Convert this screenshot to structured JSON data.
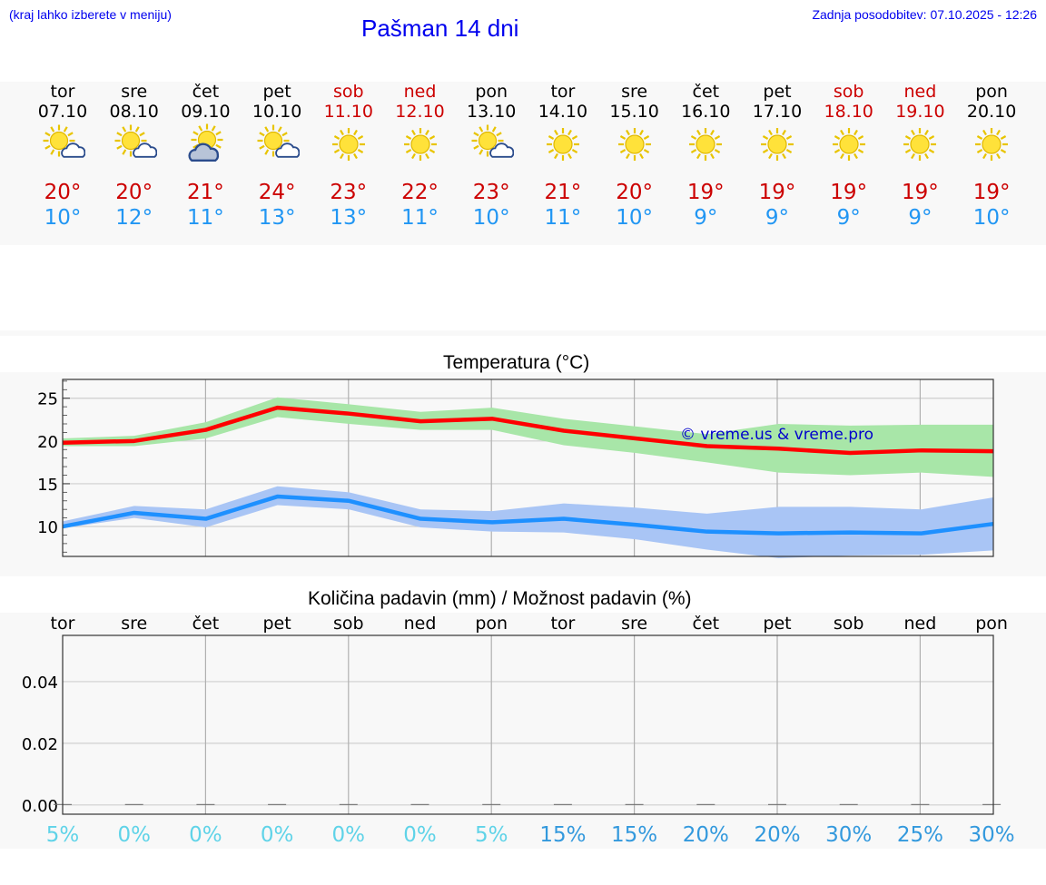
{
  "header": {
    "hint": "(kraj lahko izberete v meniju)",
    "title": "Pašman 14 dni",
    "updated": "Zadnja posodobitev: 07.10.2025 - 12:26"
  },
  "days": [
    {
      "name": "tor",
      "date": "07.10",
      "weekend": false,
      "icon": "sun-cloud-icon",
      "max": "20°",
      "min": "10°"
    },
    {
      "name": "sre",
      "date": "08.10",
      "weekend": false,
      "icon": "sun-cloud-icon",
      "max": "20°",
      "min": "12°"
    },
    {
      "name": "čet",
      "date": "09.10",
      "weekend": false,
      "icon": "sun-clouds-icon",
      "max": "21°",
      "min": "11°"
    },
    {
      "name": "pet",
      "date": "10.10",
      "weekend": false,
      "icon": "sun-cloud-icon",
      "max": "24°",
      "min": "13°"
    },
    {
      "name": "sob",
      "date": "11.10",
      "weekend": true,
      "icon": "sun-icon",
      "max": "23°",
      "min": "13°"
    },
    {
      "name": "ned",
      "date": "12.10",
      "weekend": true,
      "icon": "sun-icon",
      "max": "22°",
      "min": "11°"
    },
    {
      "name": "pon",
      "date": "13.10",
      "weekend": false,
      "icon": "sun-cloud-icon",
      "max": "23°",
      "min": "10°"
    },
    {
      "name": "tor",
      "date": "14.10",
      "weekend": false,
      "icon": "sun-icon",
      "max": "21°",
      "min": "11°"
    },
    {
      "name": "sre",
      "date": "15.10",
      "weekend": false,
      "icon": "sun-icon",
      "max": "20°",
      "min": "10°"
    },
    {
      "name": "čet",
      "date": "16.10",
      "weekend": false,
      "icon": "sun-icon",
      "max": "19°",
      "min": "9°"
    },
    {
      "name": "pet",
      "date": "17.10",
      "weekend": false,
      "icon": "sun-icon",
      "max": "19°",
      "min": "9°"
    },
    {
      "name": "sob",
      "date": "18.10",
      "weekend": true,
      "icon": "sun-icon",
      "max": "19°",
      "min": "9°"
    },
    {
      "name": "ned",
      "date": "19.10",
      "weekend": true,
      "icon": "sun-icon",
      "max": "19°",
      "min": "9°"
    },
    {
      "name": "pon",
      "date": "20.10",
      "weekend": false,
      "icon": "sun-icon",
      "max": "19°",
      "min": "10°"
    }
  ],
  "colors": {
    "max_line": "#ff0000",
    "max_band": "#a8e6a8",
    "min_line": "#1e90ff",
    "min_band": "#a9c5f5",
    "watermark": "#0000cc",
    "weekend": "#cc0000",
    "prob_low": "#5fd3e8",
    "prob_high": "#3399dd"
  },
  "chart_data": [
    {
      "type": "line",
      "title": "Temperatura (°C)",
      "watermark": "© vreme.us & vreme.pro",
      "categories": [
        "07.10",
        "08.10",
        "09.10",
        "10.10",
        "11.10",
        "12.10",
        "13.10",
        "14.10",
        "15.10",
        "16.10",
        "17.10",
        "18.10",
        "19.10",
        "20.10"
      ],
      "yticks": [
        10,
        15,
        20,
        25
      ],
      "ylim": [
        6.5,
        27.2
      ],
      "grid": true,
      "series": [
        {
          "name": "max",
          "values": [
            19.8,
            20.0,
            21.3,
            23.9,
            23.2,
            22.3,
            22.6,
            21.2,
            20.3,
            19.4,
            19.1,
            18.6,
            18.9,
            18.8
          ],
          "band_low": [
            19.4,
            19.4,
            20.3,
            22.8,
            22.0,
            21.3,
            21.3,
            19.5,
            18.6,
            17.5,
            16.3,
            16.0,
            16.3,
            15.8
          ],
          "band_high": [
            20.3,
            20.6,
            22.2,
            25.1,
            24.3,
            23.4,
            23.9,
            22.6,
            21.7,
            20.8,
            22.0,
            21.8,
            21.9,
            21.9
          ]
        },
        {
          "name": "min",
          "values": [
            10.0,
            11.6,
            10.9,
            13.5,
            13.0,
            10.9,
            10.5,
            10.9,
            10.2,
            9.4,
            9.2,
            9.3,
            9.2,
            10.3
          ],
          "band_low": [
            9.8,
            11.0,
            9.9,
            12.5,
            12.0,
            9.9,
            9.4,
            9.3,
            8.5,
            7.3,
            6.3,
            6.6,
            6.7,
            7.2
          ],
          "band_high": [
            10.6,
            12.4,
            12.0,
            14.7,
            14.0,
            12.0,
            11.8,
            12.7,
            12.2,
            11.5,
            12.3,
            12.3,
            12.0,
            13.4
          ]
        }
      ]
    },
    {
      "type": "bar",
      "title": "Količina padavin (mm) / Možnost padavin (%)",
      "categories": [
        "tor",
        "sre",
        "čet",
        "pet",
        "sob",
        "ned",
        "pon",
        "tor",
        "sre",
        "čet",
        "pet",
        "sob",
        "ned",
        "pon"
      ],
      "values": [
        0,
        0,
        0,
        0,
        0,
        0,
        0,
        0,
        0,
        0,
        0,
        0,
        0,
        0
      ],
      "yticks": [
        0.0,
        0.02,
        0.04
      ],
      "ylim": [
        -0.003,
        0.055
      ],
      "probability": [
        "5%",
        "0%",
        "0%",
        "0%",
        "0%",
        "0%",
        "5%",
        "15%",
        "15%",
        "20%",
        "20%",
        "30%",
        "25%",
        "30%"
      ]
    }
  ]
}
